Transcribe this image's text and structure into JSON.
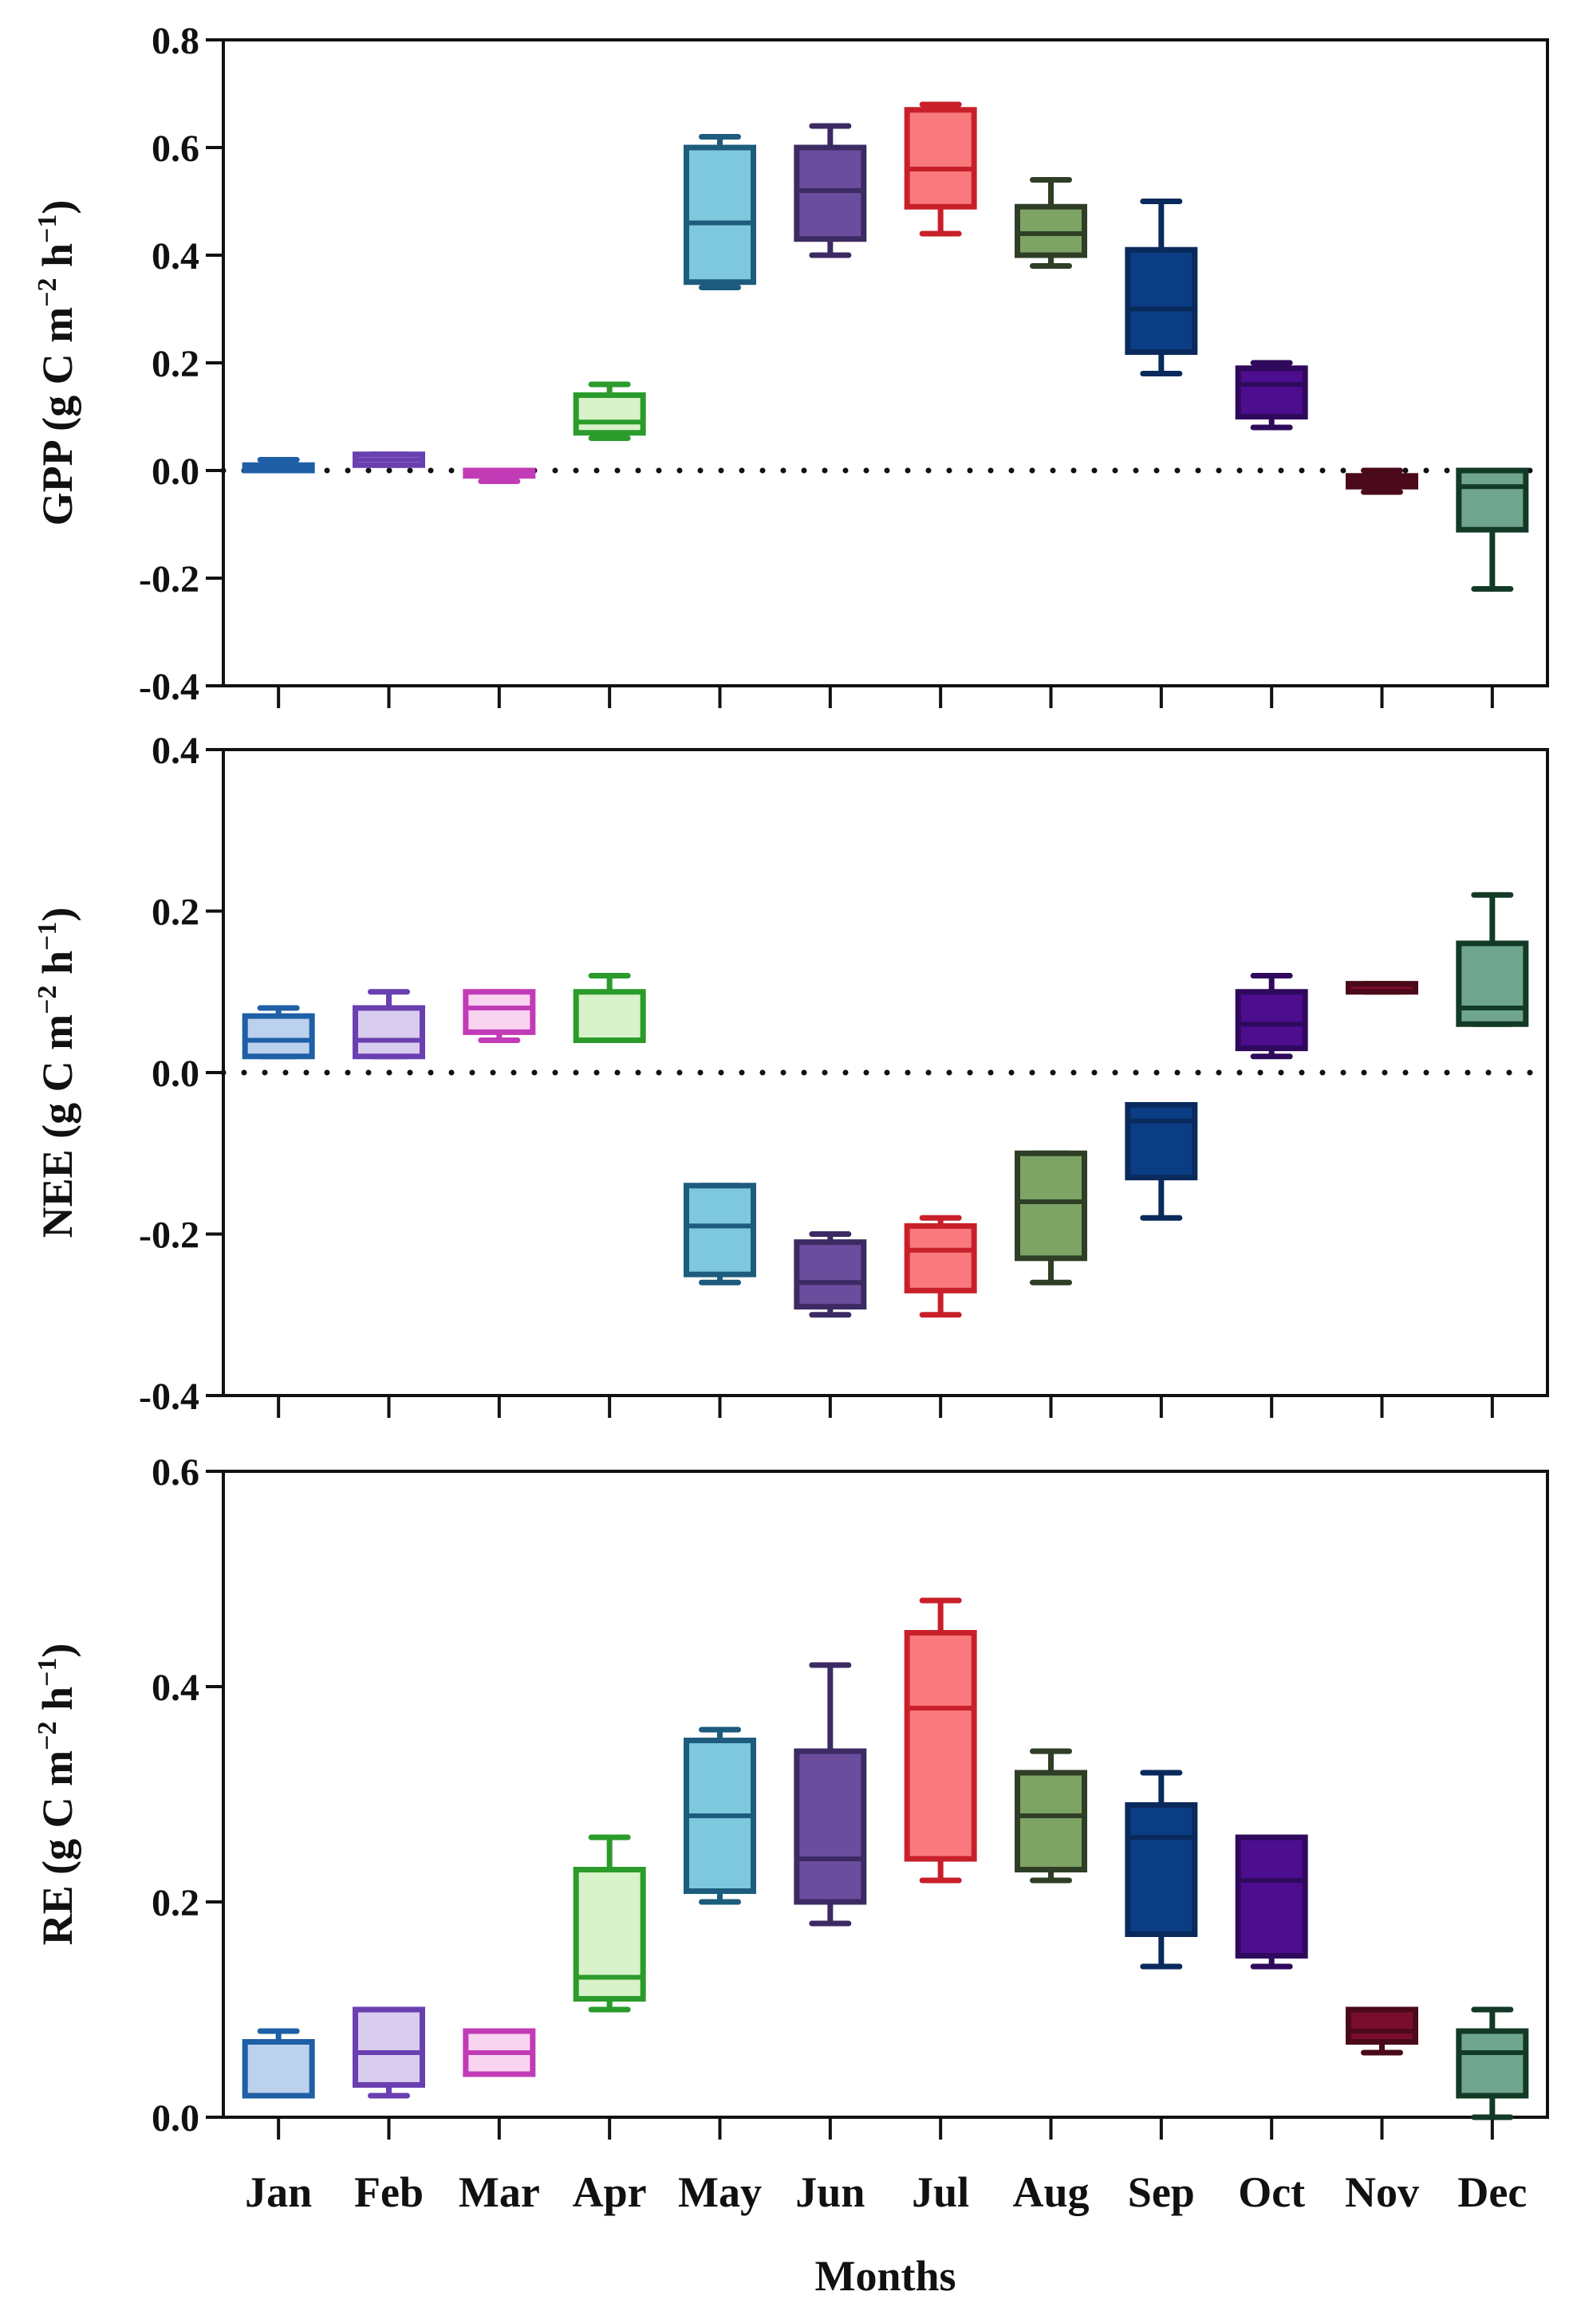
{
  "chart_data": {
    "type": "box",
    "xlabel": "Months",
    "categories": [
      "Jan",
      "Feb",
      "Mar",
      "Apr",
      "May",
      "Jun",
      "Jul",
      "Aug",
      "Sep",
      "Oct",
      "Nov",
      "Dec"
    ],
    "colors": {
      "Jan": {
        "stroke": "#1f5fa6",
        "fill": "#bcd1ee"
      },
      "Feb": {
        "stroke": "#6a3fb0",
        "fill": "#d8ccef"
      },
      "Mar": {
        "stroke": "#c23bb6",
        "fill": "#f8d4f0"
      },
      "Apr": {
        "stroke": "#2b9b2b",
        "fill": "#d8f2c9"
      },
      "May": {
        "stroke": "#1d5c7d",
        "fill": "#7ec8de"
      },
      "Jun": {
        "stroke": "#3c2a63",
        "fill": "#6a4d9c"
      },
      "Jul": {
        "stroke": "#c8202a",
        "fill": "#f87a7c"
      },
      "Aug": {
        "stroke": "#2f3e26",
        "fill": "#7ea465"
      },
      "Sep": {
        "stroke": "#0a2a5c",
        "fill": "#0b3d85"
      },
      "Oct": {
        "stroke": "#2f0a5c",
        "fill": "#4c0d8e"
      },
      "Nov": {
        "stroke": "#4a0a1a",
        "fill": "#7a0d2e"
      },
      "Dec": {
        "stroke": "#123a26",
        "fill": "#6fa58f"
      }
    },
    "panels": [
      {
        "ylabel_main": "GPP",
        "ylabel_units": "(g C m",
        "ylabel_exp1": "−2",
        "ylabel_mid": " h",
        "ylabel_exp2": "−1",
        "ylabel_close": ")",
        "ylim": [
          -0.4,
          0.8
        ],
        "yticks": [
          -0.4,
          -0.2,
          0.0,
          0.2,
          0.4,
          0.6,
          0.8
        ],
        "ytick_labels": [
          "-0.4",
          "-0.2",
          "0.0",
          "0.2",
          "0.4",
          "0.6",
          "0.8"
        ],
        "zero_line": true,
        "boxes": [
          {
            "month": "Jan",
            "min": 0.0,
            "q1": 0.0,
            "median": 0.01,
            "q3": 0.01,
            "max": 0.02
          },
          {
            "month": "Feb",
            "min": 0.01,
            "q1": 0.01,
            "median": 0.02,
            "q3": 0.03,
            "max": 0.03
          },
          {
            "month": "Mar",
            "min": -0.02,
            "q1": -0.01,
            "median": 0.0,
            "q3": 0.0,
            "max": 0.0
          },
          {
            "month": "Apr",
            "min": 0.06,
            "q1": 0.07,
            "median": 0.09,
            "q3": 0.14,
            "max": 0.16
          },
          {
            "month": "May",
            "min": 0.34,
            "q1": 0.35,
            "median": 0.46,
            "q3": 0.6,
            "max": 0.62
          },
          {
            "month": "Jun",
            "min": 0.4,
            "q1": 0.43,
            "median": 0.52,
            "q3": 0.6,
            "max": 0.64
          },
          {
            "month": "Jul",
            "min": 0.44,
            "q1": 0.49,
            "median": 0.56,
            "q3": 0.67,
            "max": 0.68
          },
          {
            "month": "Aug",
            "min": 0.38,
            "q1": 0.4,
            "median": 0.44,
            "q3": 0.49,
            "max": 0.54
          },
          {
            "month": "Sep",
            "min": 0.18,
            "q1": 0.22,
            "median": 0.3,
            "q3": 0.41,
            "max": 0.5
          },
          {
            "month": "Oct",
            "min": 0.08,
            "q1": 0.1,
            "median": 0.16,
            "q3": 0.19,
            "max": 0.2
          },
          {
            "month": "Nov",
            "min": -0.04,
            "q1": -0.03,
            "median": -0.02,
            "q3": -0.01,
            "max": 0.0
          },
          {
            "month": "Dec",
            "min": -0.22,
            "q1": -0.11,
            "median": -0.03,
            "q3": 0.0,
            "max": 0.0
          }
        ]
      },
      {
        "ylabel_main": "NEE",
        "ylabel_units": "(g C m",
        "ylabel_exp1": "−2",
        "ylabel_mid": " h",
        "ylabel_exp2": "−1",
        "ylabel_close": ")",
        "ylim": [
          -0.4,
          0.4
        ],
        "yticks": [
          -0.4,
          -0.2,
          0.0,
          0.2,
          0.4
        ],
        "ytick_labels": [
          "-0.4",
          "-0.2",
          "0.0",
          "0.2",
          "0.4"
        ],
        "zero_line": true,
        "boxes": [
          {
            "month": "Jan",
            "min": 0.02,
            "q1": 0.02,
            "median": 0.04,
            "q3": 0.07,
            "max": 0.08
          },
          {
            "month": "Feb",
            "min": 0.02,
            "q1": 0.02,
            "median": 0.04,
            "q3": 0.08,
            "max": 0.1
          },
          {
            "month": "Mar",
            "min": 0.04,
            "q1": 0.05,
            "median": 0.08,
            "q3": 0.1,
            "max": 0.1
          },
          {
            "month": "Apr",
            "min": 0.04,
            "q1": 0.04,
            "median": 0.04,
            "q3": 0.1,
            "max": 0.12
          },
          {
            "month": "May",
            "min": -0.26,
            "q1": -0.25,
            "median": -0.19,
            "q3": -0.14,
            "max": -0.14
          },
          {
            "month": "Jun",
            "min": -0.3,
            "q1": -0.29,
            "median": -0.26,
            "q3": -0.21,
            "max": -0.2
          },
          {
            "month": "Jul",
            "min": -0.3,
            "q1": -0.27,
            "median": -0.22,
            "q3": -0.19,
            "max": -0.18
          },
          {
            "month": "Aug",
            "min": -0.26,
            "q1": -0.23,
            "median": -0.16,
            "q3": -0.1,
            "max": -0.1
          },
          {
            "month": "Sep",
            "min": -0.18,
            "q1": -0.13,
            "median": -0.06,
            "q3": -0.04,
            "max": -0.04
          },
          {
            "month": "Oct",
            "min": 0.02,
            "q1": 0.03,
            "median": 0.06,
            "q3": 0.1,
            "max": 0.12
          },
          {
            "month": "Nov",
            "min": 0.1,
            "q1": 0.1,
            "median": 0.11,
            "q3": 0.11,
            "max": 0.11
          },
          {
            "month": "Dec",
            "min": 0.06,
            "q1": 0.06,
            "median": 0.08,
            "q3": 0.16,
            "max": 0.22
          }
        ]
      },
      {
        "ylabel_main": "RE",
        "ylabel_units": "(g C m",
        "ylabel_exp1": "−2",
        "ylabel_mid": " h",
        "ylabel_exp2": "−1",
        "ylabel_close": ")",
        "ylim": [
          0.0,
          0.6
        ],
        "yticks": [
          0.0,
          0.2,
          0.4,
          0.6
        ],
        "ytick_labels": [
          "0.0",
          "0.2",
          "0.4",
          "0.6"
        ],
        "zero_line": false,
        "boxes": [
          {
            "month": "Jan",
            "min": 0.02,
            "q1": 0.02,
            "median": 0.07,
            "q3": 0.07,
            "max": 0.08
          },
          {
            "month": "Feb",
            "min": 0.02,
            "q1": 0.03,
            "median": 0.06,
            "q3": 0.1,
            "max": 0.1
          },
          {
            "month": "Mar",
            "min": 0.04,
            "q1": 0.04,
            "median": 0.06,
            "q3": 0.08,
            "max": 0.08
          },
          {
            "month": "Apr",
            "min": 0.1,
            "q1": 0.11,
            "median": 0.13,
            "q3": 0.23,
            "max": 0.26
          },
          {
            "month": "May",
            "min": 0.2,
            "q1": 0.21,
            "median": 0.28,
            "q3": 0.35,
            "max": 0.36
          },
          {
            "month": "Jun",
            "min": 0.18,
            "q1": 0.2,
            "median": 0.24,
            "q3": 0.34,
            "max": 0.42
          },
          {
            "month": "Jul",
            "min": 0.22,
            "q1": 0.24,
            "median": 0.38,
            "q3": 0.45,
            "max": 0.48
          },
          {
            "month": "Aug",
            "min": 0.22,
            "q1": 0.23,
            "median": 0.28,
            "q3": 0.32,
            "max": 0.34
          },
          {
            "month": "Sep",
            "min": 0.14,
            "q1": 0.17,
            "median": 0.26,
            "q3": 0.29,
            "max": 0.32
          },
          {
            "month": "Oct",
            "min": 0.14,
            "q1": 0.15,
            "median": 0.22,
            "q3": 0.26,
            "max": 0.26
          },
          {
            "month": "Nov",
            "min": 0.06,
            "q1": 0.07,
            "median": 0.08,
            "q3": 0.1,
            "max": 0.1
          },
          {
            "month": "Dec",
            "min": 0.0,
            "q1": 0.02,
            "median": 0.06,
            "q3": 0.08,
            "max": 0.1
          }
        ]
      }
    ]
  }
}
